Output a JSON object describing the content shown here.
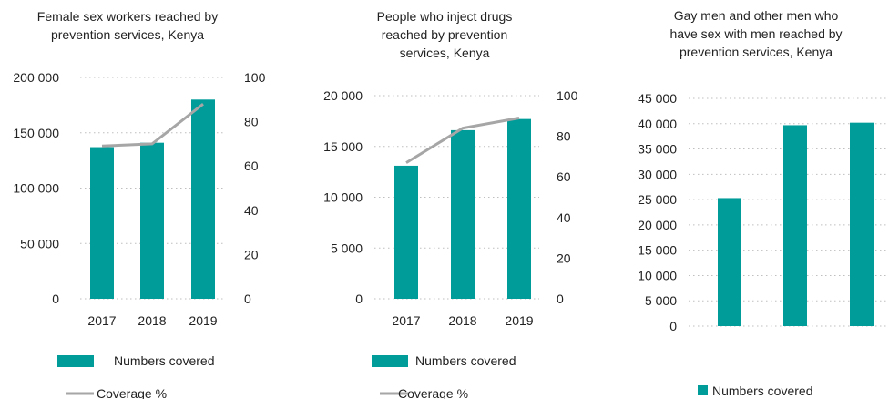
{
  "colors": {
    "bar": "#009c9a",
    "line": "#a6a6a6",
    "grid": "#bfbfbf",
    "text": "#222222"
  },
  "legend": {
    "bars_label": "Numbers covered",
    "line_label": "Coverage %"
  },
  "chart_data": [
    {
      "type": "bar",
      "title_lines": [
        "Female sex workers reached by",
        "prevention services, Kenya"
      ],
      "categories": [
        "2017",
        "2018",
        "2019"
      ],
      "series": [
        {
          "name": "Numbers covered",
          "type": "bar",
          "axis": "left",
          "values": [
            137000,
            141000,
            180000
          ]
        },
        {
          "name": "Coverage %",
          "type": "line",
          "axis": "right",
          "values": [
            69,
            70,
            88
          ]
        }
      ],
      "ylim": [
        0,
        200000
      ],
      "yticks": [
        0,
        50000,
        100000,
        150000,
        200000
      ],
      "ytick_labels": [
        "0",
        "50 000",
        "100 000",
        "150 000",
        "200 000"
      ],
      "y2lim": [
        0,
        100
      ],
      "y2ticks": [
        0,
        20,
        40,
        60,
        80,
        100
      ],
      "y2tick_labels": [
        "0",
        "20",
        "40",
        "60",
        "80",
        "100"
      ],
      "grid": true,
      "legend_position": "bottom"
    },
    {
      "type": "bar",
      "title_lines": [
        "People who inject drugs",
        "reached by prevention",
        "services, Kenya"
      ],
      "categories": [
        "2017",
        "2018",
        "2019"
      ],
      "series": [
        {
          "name": "Numbers covered",
          "type": "bar",
          "axis": "left",
          "values": [
            13100,
            16600,
            17700
          ]
        },
        {
          "name": "Coverage %",
          "type": "line",
          "axis": "right",
          "values": [
            67,
            84,
            89
          ]
        }
      ],
      "ylim": [
        0,
        20000
      ],
      "yticks": [
        0,
        5000,
        10000,
        15000,
        20000
      ],
      "ytick_labels": [
        "0",
        "5 000",
        "10 000",
        "15 000",
        "20 000"
      ],
      "y2lim": [
        0,
        100
      ],
      "y2ticks": [
        0,
        20,
        40,
        60,
        80,
        100
      ],
      "y2tick_labels": [
        "0",
        "20",
        "40",
        "60",
        "80",
        "100"
      ],
      "grid": true,
      "legend_position": "bottom"
    },
    {
      "type": "bar",
      "title_lines": [
        "Gay men and other men who",
        "have sex with men reached by",
        "prevention services, Kenya"
      ],
      "categories": [
        "",
        "",
        ""
      ],
      "series": [
        {
          "name": "Numbers covered",
          "type": "bar",
          "axis": "left",
          "values": [
            25300,
            39700,
            40200
          ]
        }
      ],
      "ylim": [
        0,
        45000
      ],
      "yticks": [
        0,
        5000,
        10000,
        15000,
        20000,
        25000,
        30000,
        35000,
        40000,
        45000
      ],
      "ytick_labels": [
        "0",
        "5 000",
        "10 000",
        "15 000",
        "20 000",
        "25 000",
        "30 000",
        "35 000",
        "40 000",
        "45 000"
      ],
      "grid": true,
      "legend_position": "bottom"
    }
  ]
}
